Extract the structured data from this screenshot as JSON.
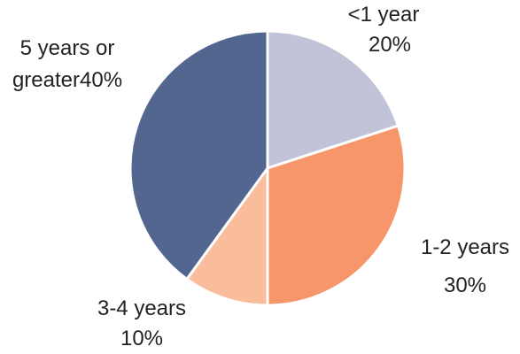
{
  "chart_data": {
    "type": "pie",
    "title": "",
    "start_angle_deg": 0,
    "direction": "clockwise",
    "slices": [
      {
        "label": "<1 year",
        "value": 20,
        "display": "20%",
        "color": "#c1c4d8"
      },
      {
        "label": "1-2 years",
        "value": 30,
        "display": "30%",
        "color": "#f7966b"
      },
      {
        "label": "3-4 years",
        "value": 10,
        "display": "10%",
        "color": "#f9bd9b"
      },
      {
        "label": "5 years or greater",
        "value": 40,
        "display": "40%",
        "color": "#526690"
      }
    ],
    "legend": "none"
  }
}
